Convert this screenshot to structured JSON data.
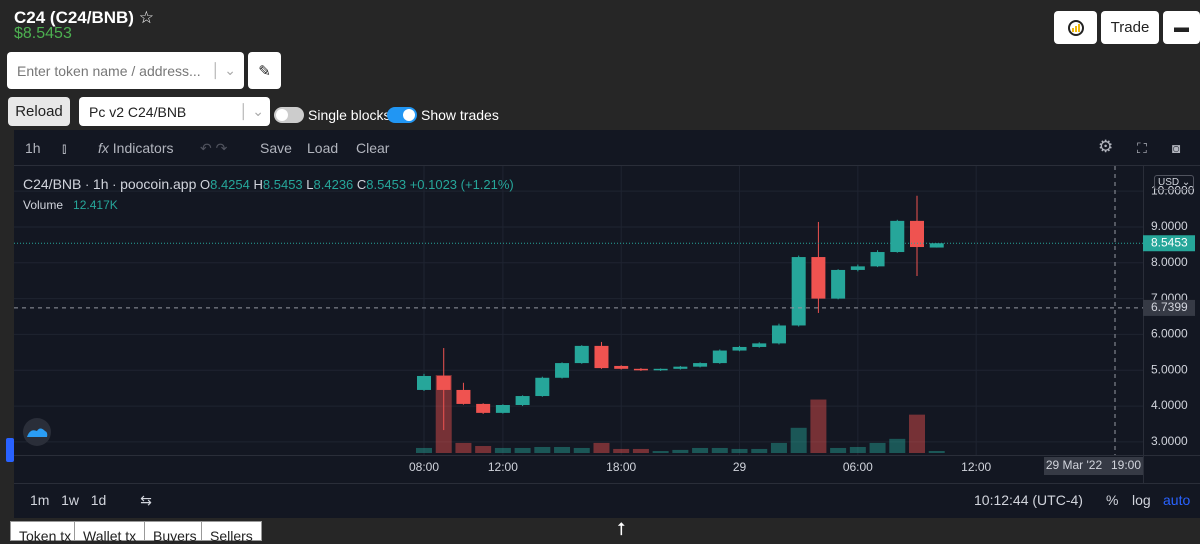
{
  "header": {
    "title": "C24 (C24/BNB)",
    "price": "$8.5453",
    "trade": "Trade"
  },
  "search": {
    "placeholder": "Enter token name / address..."
  },
  "controls": {
    "reload": "Reload",
    "pair": "Pc v2 C24/BNB",
    "single_blocks": "Single blocks",
    "show_trades": "Show trades"
  },
  "toolbar": {
    "interval": "1h",
    "indicators": "Indicators",
    "save": "Save",
    "load": "Load",
    "clear": "Clear"
  },
  "legend": {
    "symbol": "C24/BNB",
    "interval": "1h",
    "source": "poocoin.app",
    "o": "O",
    "h": "H",
    "l": "L",
    "c": "C",
    "change": "+0.1023 (+1.21%)",
    "volume_name": "Volume",
    "volume": "12.417K"
  },
  "axis": {
    "currency": "USD",
    "time_date": "29 Mar '22",
    "time_hour": "19:00"
  },
  "bottom": {
    "ranges": [
      "1m",
      "1w",
      "1d"
    ],
    "clock": "10:12:44 (UTC-4)",
    "percent": "%",
    "log": "log",
    "auto": "auto"
  },
  "tabs": [
    "Token tx",
    "Wallet tx",
    "Buyers",
    "Sellers"
  ],
  "chart_data": {
    "type": "candlestick",
    "categories": [
      "08:00",
      null,
      null,
      null,
      "12:00",
      null,
      null,
      null,
      null,
      null,
      "18:00",
      null,
      null,
      null,
      null,
      null,
      "29",
      null,
      null,
      null,
      null,
      null,
      "06:00",
      null,
      null,
      null,
      null,
      null,
      "12:00"
    ],
    "open": [
      4.45,
      4.84,
      4.45,
      4.06,
      3.81,
      4.03,
      4.28,
      4.79,
      5.2,
      5.68,
      5.12,
      5.04,
      5.0,
      5.04,
      5.1,
      5.2,
      5.55,
      5.65,
      5.75,
      6.25,
      8.16,
      7.0,
      7.8,
      7.9,
      8.3,
      9.17,
      8.4254,
      null,
      null
    ],
    "high": [
      4.9,
      5.62,
      4.65,
      4.08,
      4.05,
      4.3,
      4.82,
      5.22,
      5.7,
      5.79,
      5.14,
      5.06,
      5.05,
      5.12,
      5.22,
      5.58,
      5.68,
      5.78,
      6.3,
      8.2,
      9.14,
      7.82,
      7.95,
      8.35,
      9.2,
      9.87,
      8.5453,
      null,
      null
    ],
    "low": [
      4.42,
      3.33,
      4.04,
      3.78,
      3.79,
      4.0,
      4.26,
      4.77,
      5.18,
      5.04,
      5.02,
      4.98,
      4.98,
      5.02,
      5.08,
      5.18,
      5.53,
      5.63,
      5.72,
      6.22,
      6.6,
      6.98,
      7.76,
      7.88,
      8.28,
      7.63,
      8.4236,
      null,
      null
    ],
    "close": [
      4.84,
      4.45,
      4.06,
      3.81,
      4.03,
      4.28,
      4.79,
      5.2,
      5.68,
      5.06,
      5.04,
      5.0,
      5.04,
      5.1,
      5.2,
      5.55,
      5.65,
      5.75,
      6.25,
      8.16,
      7.0,
      7.8,
      7.9,
      8.3,
      9.17,
      8.44,
      8.5453,
      null,
      null
    ],
    "volume": [
      31,
      480,
      62,
      43,
      31,
      31,
      37,
      37,
      31,
      62,
      25,
      25,
      12,
      19,
      31,
      31,
      25,
      25,
      62,
      155,
      329,
      31,
      37,
      62,
      87,
      236,
      12.417,
      null,
      null
    ],
    "up_color": "#26a69a",
    "down_color": "#ef5350",
    "ylim": [
      2.69,
      10.59
    ],
    "yticks": [
      {
        "value": 3,
        "label": "3.0000"
      },
      {
        "value": 4,
        "label": "4.0000"
      },
      {
        "value": 5,
        "label": "5.0000"
      },
      {
        "value": 6,
        "label": "6.0000"
      },
      {
        "value": 7,
        "label": "7.0000"
      },
      {
        "value": 8,
        "label": "8.0000"
      },
      {
        "value": 9,
        "label": "9.0000"
      },
      {
        "value": 10,
        "label": "10.0000"
      }
    ],
    "crosshair_price": 6.7399,
    "grid": true
  }
}
